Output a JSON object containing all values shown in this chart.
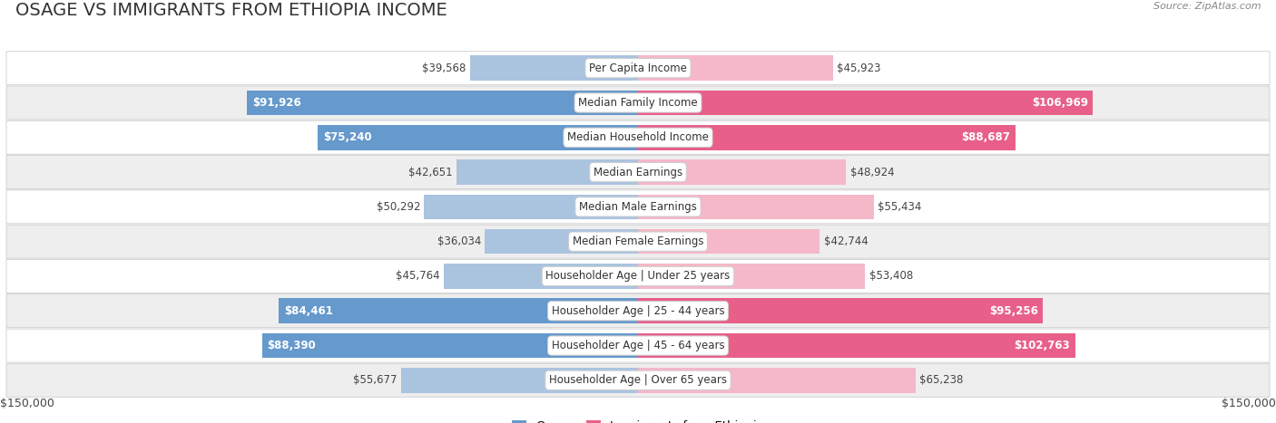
{
  "title": "OSAGE VS IMMIGRANTS FROM ETHIOPIA INCOME",
  "source": "Source: ZipAtlas.com",
  "categories": [
    "Per Capita Income",
    "Median Family Income",
    "Median Household Income",
    "Median Earnings",
    "Median Male Earnings",
    "Median Female Earnings",
    "Householder Age | Under 25 years",
    "Householder Age | 25 - 44 years",
    "Householder Age | 45 - 64 years",
    "Householder Age | Over 65 years"
  ],
  "osage_values": [
    39568,
    91926,
    75240,
    42651,
    50292,
    36034,
    45764,
    84461,
    88390,
    55677
  ],
  "ethiopia_values": [
    45923,
    106969,
    88687,
    48924,
    55434,
    42744,
    53408,
    95256,
    102763,
    65238
  ],
  "osage_labels": [
    "$39,568",
    "$91,926",
    "$75,240",
    "$42,651",
    "$50,292",
    "$36,034",
    "$45,764",
    "$84,461",
    "$88,390",
    "$55,677"
  ],
  "ethiopia_labels": [
    "$45,923",
    "$106,969",
    "$88,687",
    "$48,924",
    "$55,434",
    "$42,744",
    "$53,408",
    "$95,256",
    "$102,763",
    "$65,238"
  ],
  "osage_color_light": "#aac4e0",
  "osage_color_strong": "#6699cc",
  "ethiopia_color_light": "#f5b8c8",
  "ethiopia_color_strong": "#e8608a",
  "osage_strong_threshold": 70000,
  "ethiopia_strong_threshold": 85000,
  "max_value": 150000,
  "xlabel_left": "$150,000",
  "xlabel_right": "$150,000",
  "legend_osage": "Osage",
  "legend_ethiopia": "Immigrants from Ethiopia",
  "bg_color": "#ffffff",
  "row_colors": [
    "#ffffff",
    "#eeeeee"
  ],
  "row_border_color": "#cccccc",
  "title_fontsize": 14,
  "label_fontsize": 8.5,
  "cat_fontsize": 8.5
}
